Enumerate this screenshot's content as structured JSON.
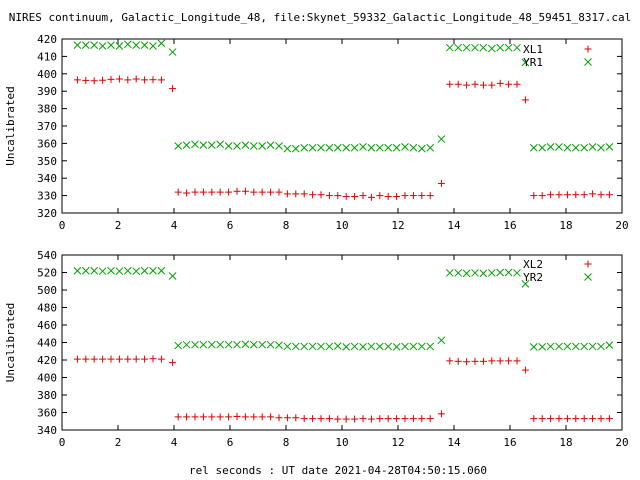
{
  "window_title": "NIRES continuum, Galactic_Longitude_48, file:Skynet_59332_Galactic_Longitude_48_59451_8317.cal",
  "xlabel": "rel seconds : UT date 2021-04-28T04:50:15.060",
  "colors": {
    "red": "#dd0000",
    "green": "#00a000",
    "axis": "#000000"
  },
  "chart_data": [
    {
      "type": "scatter",
      "ylabel": "Uncalibrated",
      "xlim": [
        0,
        20
      ],
      "ylim": [
        320,
        420
      ],
      "xticks": [
        0,
        2,
        4,
        6,
        8,
        10,
        12,
        14,
        16,
        18,
        20
      ],
      "yticks": [
        320,
        330,
        340,
        350,
        360,
        370,
        380,
        390,
        400,
        410,
        420
      ],
      "legend_position": "top-right",
      "series": [
        {
          "name": "XL1",
          "marker": "plus",
          "color": "#dd0000",
          "points": [
            [
              0.55,
              396.5
            ],
            [
              0.85,
              396.2
            ],
            [
              1.15,
              396.0
            ],
            [
              1.45,
              396.3
            ],
            [
              1.75,
              396.8
            ],
            [
              2.05,
              397.0
            ],
            [
              2.35,
              396.5
            ],
            [
              2.65,
              397.0
            ],
            [
              2.95,
              396.5
            ],
            [
              3.25,
              396.6
            ],
            [
              3.55,
              396.5
            ],
            [
              3.95,
              391.5
            ],
            [
              4.15,
              332.0
            ],
            [
              4.45,
              331.5
            ],
            [
              4.75,
              332.0
            ],
            [
              5.05,
              332.0
            ],
            [
              5.35,
              332.0
            ],
            [
              5.65,
              332.0
            ],
            [
              5.95,
              332.0
            ],
            [
              6.25,
              332.5
            ],
            [
              6.55,
              332.5
            ],
            [
              6.85,
              332.0
            ],
            [
              7.15,
              332.0
            ],
            [
              7.45,
              332.0
            ],
            [
              7.75,
              332.0
            ],
            [
              8.05,
              331.0
            ],
            [
              8.35,
              331.0
            ],
            [
              8.65,
              331.0
            ],
            [
              8.95,
              330.5
            ],
            [
              9.25,
              330.5
            ],
            [
              9.55,
              330.0
            ],
            [
              9.85,
              330.0
            ],
            [
              10.15,
              329.5
            ],
            [
              10.45,
              329.5
            ],
            [
              10.75,
              330.0
            ],
            [
              11.05,
              329.0
            ],
            [
              11.35,
              330.0
            ],
            [
              11.65,
              329.5
            ],
            [
              11.95,
              329.5
            ],
            [
              12.25,
              330.0
            ],
            [
              12.55,
              330.0
            ],
            [
              12.85,
              330.0
            ],
            [
              13.15,
              330.0
            ],
            [
              13.55,
              337.0
            ],
            [
              13.85,
              394.0
            ],
            [
              14.15,
              394.0
            ],
            [
              14.45,
              393.5
            ],
            [
              14.75,
              394.0
            ],
            [
              15.05,
              393.5
            ],
            [
              15.35,
              393.5
            ],
            [
              15.65,
              394.5
            ],
            [
              15.95,
              394.0
            ],
            [
              16.25,
              394.0
            ],
            [
              16.55,
              385.0
            ],
            [
              16.85,
              330.0
            ],
            [
              17.15,
              330.0
            ],
            [
              17.45,
              330.5
            ],
            [
              17.75,
              330.5
            ],
            [
              18.05,
              330.5
            ],
            [
              18.35,
              330.5
            ],
            [
              18.65,
              330.5
            ],
            [
              18.95,
              331.0
            ],
            [
              19.25,
              330.5
            ],
            [
              19.55,
              330.5
            ]
          ]
        },
        {
          "name": "YR1",
          "marker": "cross",
          "color": "#00a000",
          "points": [
            [
              0.55,
              416.5
            ],
            [
              0.85,
              416.5
            ],
            [
              1.15,
              416.5
            ],
            [
              1.45,
              416.0
            ],
            [
              1.75,
              416.5
            ],
            [
              2.05,
              416.0
            ],
            [
              2.35,
              417.0
            ],
            [
              2.65,
              416.5
            ],
            [
              2.95,
              416.5
            ],
            [
              3.25,
              416.0
            ],
            [
              3.55,
              417.5
            ],
            [
              3.95,
              412.5
            ],
            [
              4.15,
              358.5
            ],
            [
              4.45,
              359.0
            ],
            [
              4.75,
              359.5
            ],
            [
              5.05,
              359.0
            ],
            [
              5.35,
              359.0
            ],
            [
              5.65,
              359.5
            ],
            [
              5.95,
              358.5
            ],
            [
              6.25,
              358.5
            ],
            [
              6.55,
              359.0
            ],
            [
              6.85,
              358.5
            ],
            [
              7.15,
              358.5
            ],
            [
              7.45,
              359.0
            ],
            [
              7.75,
              358.5
            ],
            [
              8.05,
              357.0
            ],
            [
              8.35,
              357.0
            ],
            [
              8.65,
              357.5
            ],
            [
              8.95,
              357.5
            ],
            [
              9.25,
              357.5
            ],
            [
              9.55,
              357.5
            ],
            [
              9.85,
              357.5
            ],
            [
              10.15,
              357.5
            ],
            [
              10.45,
              357.5
            ],
            [
              10.75,
              358.0
            ],
            [
              11.05,
              357.5
            ],
            [
              11.35,
              357.5
            ],
            [
              11.65,
              357.5
            ],
            [
              11.95,
              357.5
            ],
            [
              12.25,
              358.0
            ],
            [
              12.55,
              357.5
            ],
            [
              12.85,
              357.0
            ],
            [
              13.15,
              357.5
            ],
            [
              13.55,
              362.5
            ],
            [
              13.85,
              415.0
            ],
            [
              14.15,
              415.0
            ],
            [
              14.45,
              415.0
            ],
            [
              14.75,
              415.0
            ],
            [
              15.05,
              415.0
            ],
            [
              15.35,
              414.5
            ],
            [
              15.65,
              415.0
            ],
            [
              15.95,
              415.0
            ],
            [
              16.25,
              415.0
            ],
            [
              16.55,
              406.5
            ],
            [
              16.85,
              357.5
            ],
            [
              17.15,
              357.5
            ],
            [
              17.45,
              358.0
            ],
            [
              17.75,
              358.0
            ],
            [
              18.05,
              357.5
            ],
            [
              18.35,
              357.5
            ],
            [
              18.65,
              357.5
            ],
            [
              18.95,
              358.0
            ],
            [
              19.25,
              357.5
            ],
            [
              19.55,
              358.0
            ]
          ]
        }
      ]
    },
    {
      "type": "scatter",
      "ylabel": "Uncalibrated",
      "xlim": [
        0,
        20
      ],
      "ylim": [
        340,
        540
      ],
      "xticks": [
        0,
        2,
        4,
        6,
        8,
        10,
        12,
        14,
        16,
        18,
        20
      ],
      "yticks": [
        340,
        360,
        380,
        400,
        420,
        440,
        460,
        480,
        500,
        520,
        540
      ],
      "legend_position": "top-right",
      "series": [
        {
          "name": "XL2",
          "marker": "plus",
          "color": "#dd0000",
          "points": [
            [
              0.55,
              421.0
            ],
            [
              0.85,
              421.0
            ],
            [
              1.15,
              421.0
            ],
            [
              1.45,
              421.0
            ],
            [
              1.75,
              421.0
            ],
            [
              2.05,
              421.0
            ],
            [
              2.35,
              421.0
            ],
            [
              2.65,
              421.0
            ],
            [
              2.95,
              421.0
            ],
            [
              3.25,
              421.5
            ],
            [
              3.55,
              421.0
            ],
            [
              3.95,
              417.0
            ],
            [
              4.15,
              355.0
            ],
            [
              4.45,
              355.0
            ],
            [
              4.75,
              355.0
            ],
            [
              5.05,
              355.0
            ],
            [
              5.35,
              355.0
            ],
            [
              5.65,
              355.0
            ],
            [
              5.95,
              355.0
            ],
            [
              6.25,
              355.5
            ],
            [
              6.55,
              355.0
            ],
            [
              6.85,
              355.0
            ],
            [
              7.15,
              355.0
            ],
            [
              7.45,
              355.0
            ],
            [
              7.75,
              354.0
            ],
            [
              8.05,
              354.0
            ],
            [
              8.35,
              354.0
            ],
            [
              8.65,
              353.0
            ],
            [
              8.95,
              353.0
            ],
            [
              9.25,
              353.0
            ],
            [
              9.55,
              353.0
            ],
            [
              9.85,
              352.5
            ],
            [
              10.15,
              352.5
            ],
            [
              10.45,
              352.5
            ],
            [
              10.75,
              353.0
            ],
            [
              11.05,
              352.5
            ],
            [
              11.35,
              353.0
            ],
            [
              11.65,
              353.0
            ],
            [
              11.95,
              353.0
            ],
            [
              12.25,
              353.0
            ],
            [
              12.55,
              353.0
            ],
            [
              12.85,
              353.0
            ],
            [
              13.15,
              353.0
            ],
            [
              13.55,
              358.5
            ],
            [
              13.85,
              419.0
            ],
            [
              14.15,
              418.5
            ],
            [
              14.45,
              418.0
            ],
            [
              14.75,
              418.5
            ],
            [
              15.05,
              418.5
            ],
            [
              15.35,
              419.0
            ],
            [
              15.65,
              419.0
            ],
            [
              15.95,
              419.0
            ],
            [
              16.25,
              419.0
            ],
            [
              16.55,
              408.5
            ],
            [
              16.85,
              353.0
            ],
            [
              17.15,
              353.0
            ],
            [
              17.45,
              353.0
            ],
            [
              17.75,
              353.0
            ],
            [
              18.05,
              353.0
            ],
            [
              18.35,
              353.0
            ],
            [
              18.65,
              353.0
            ],
            [
              18.95,
              353.0
            ],
            [
              19.25,
              353.0
            ],
            [
              19.55,
              353.0
            ]
          ]
        },
        {
          "name": "YR2",
          "marker": "cross",
          "color": "#00a000",
          "points": [
            [
              0.55,
              522.0
            ],
            [
              0.85,
              522.0
            ],
            [
              1.15,
              522.0
            ],
            [
              1.45,
              521.5
            ],
            [
              1.75,
              522.0
            ],
            [
              2.05,
              521.5
            ],
            [
              2.35,
              522.0
            ],
            [
              2.65,
              521.5
            ],
            [
              2.95,
              522.0
            ],
            [
              3.25,
              522.0
            ],
            [
              3.55,
              522.0
            ],
            [
              3.95,
              516.0
            ],
            [
              4.15,
              436.5
            ],
            [
              4.45,
              437.5
            ],
            [
              4.75,
              437.5
            ],
            [
              5.05,
              437.5
            ],
            [
              5.35,
              437.5
            ],
            [
              5.65,
              437.5
            ],
            [
              5.95,
              437.5
            ],
            [
              6.25,
              437.5
            ],
            [
              6.55,
              438.0
            ],
            [
              6.85,
              437.5
            ],
            [
              7.15,
              437.5
            ],
            [
              7.45,
              437.5
            ],
            [
              7.75,
              437.0
            ],
            [
              8.05,
              435.5
            ],
            [
              8.35,
              435.5
            ],
            [
              8.65,
              435.5
            ],
            [
              8.95,
              435.5
            ],
            [
              9.25,
              435.5
            ],
            [
              9.55,
              435.5
            ],
            [
              9.85,
              436.0
            ],
            [
              10.15,
              435.0
            ],
            [
              10.45,
              435.5
            ],
            [
              10.75,
              435.0
            ],
            [
              11.05,
              435.5
            ],
            [
              11.35,
              435.5
            ],
            [
              11.65,
              435.5
            ],
            [
              11.95,
              435.0
            ],
            [
              12.25,
              435.5
            ],
            [
              12.55,
              435.5
            ],
            [
              12.85,
              435.5
            ],
            [
              13.15,
              435.5
            ],
            [
              13.55,
              442.5
            ],
            [
              13.85,
              519.5
            ],
            [
              14.15,
              519.5
            ],
            [
              14.45,
              519.0
            ],
            [
              14.75,
              519.5
            ],
            [
              15.05,
              519.0
            ],
            [
              15.35,
              519.5
            ],
            [
              15.65,
              520.0
            ],
            [
              15.95,
              520.0
            ],
            [
              16.25,
              519.5
            ],
            [
              16.55,
              507.0
            ],
            [
              16.85,
              435.0
            ],
            [
              17.15,
              435.0
            ],
            [
              17.45,
              435.5
            ],
            [
              17.75,
              435.5
            ],
            [
              18.05,
              435.5
            ],
            [
              18.35,
              435.5
            ],
            [
              18.65,
              435.5
            ],
            [
              18.95,
              435.5
            ],
            [
              19.25,
              435.5
            ],
            [
              19.55,
              437.0
            ]
          ]
        }
      ]
    }
  ]
}
